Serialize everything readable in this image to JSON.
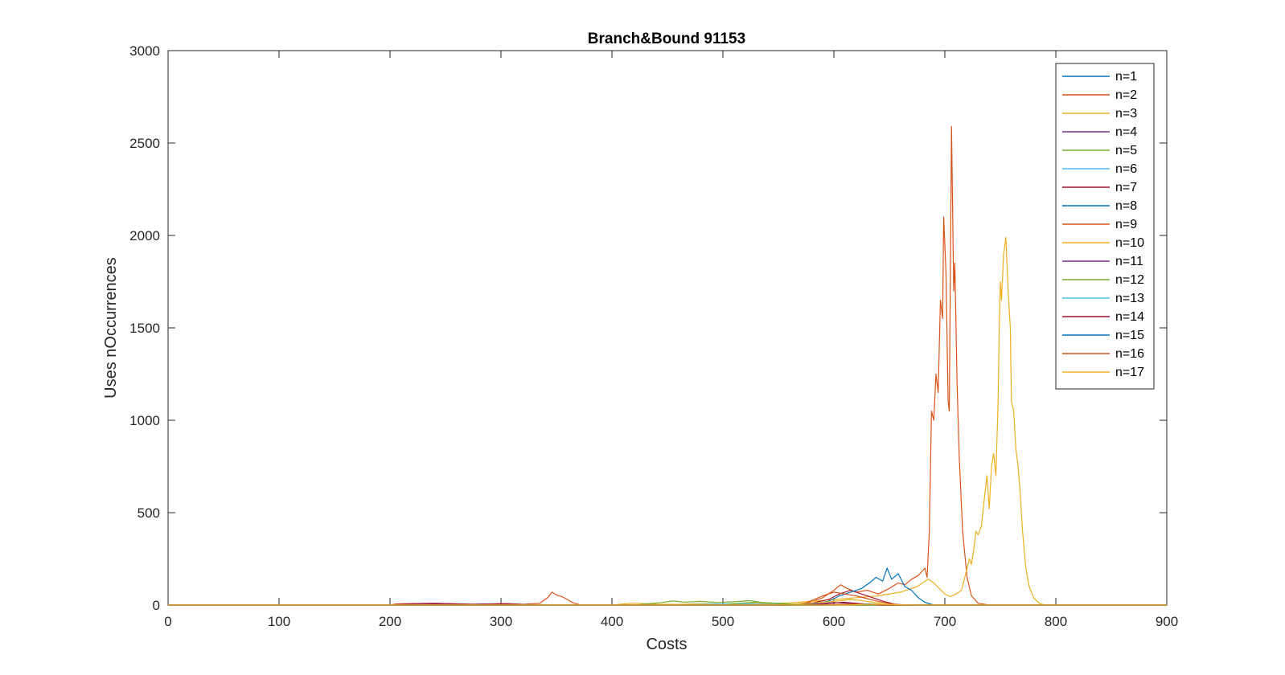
{
  "chart_data": {
    "type": "line",
    "title": "Branch&Bound 91153",
    "xlabel": "Costs",
    "ylabel": "Uses nOccurrences",
    "xlim": [
      0,
      900
    ],
    "ylim": [
      0,
      3000
    ],
    "xticks": [
      0,
      100,
      200,
      300,
      400,
      500,
      600,
      700,
      800,
      900
    ],
    "yticks": [
      0,
      500,
      1000,
      1500,
      2000,
      2500,
      3000
    ],
    "grid": false,
    "legend_position": "top-right",
    "series": [
      {
        "name": "n=1",
        "color": "#0072BD",
        "points": []
      },
      {
        "name": "n=2",
        "color": "#D95319",
        "points": [
          [
            0,
            0
          ],
          [
            200,
            0
          ],
          [
            205,
            6
          ],
          [
            220,
            8
          ],
          [
            240,
            10
          ],
          [
            260,
            6
          ],
          [
            280,
            4
          ],
          [
            300,
            8
          ],
          [
            320,
            4
          ],
          [
            335,
            10
          ],
          [
            342,
            40
          ],
          [
            346,
            70
          ],
          [
            350,
            55
          ],
          [
            355,
            45
          ],
          [
            360,
            30
          ],
          [
            365,
            12
          ],
          [
            372,
            0
          ],
          [
            380,
            0
          ],
          [
            560,
            0
          ],
          [
            575,
            8
          ],
          [
            590,
            40
          ],
          [
            600,
            80
          ],
          [
            606,
            110
          ],
          [
            612,
            90
          ],
          [
            620,
            70
          ],
          [
            630,
            80
          ],
          [
            640,
            60
          ],
          [
            650,
            90
          ],
          [
            658,
            120
          ],
          [
            664,
            110
          ],
          [
            670,
            140
          ],
          [
            676,
            160
          ],
          [
            682,
            200
          ],
          [
            684,
            150
          ],
          [
            686,
            400
          ],
          [
            688,
            1050
          ],
          [
            690,
            1000
          ],
          [
            692,
            1250
          ],
          [
            694,
            1150
          ],
          [
            696,
            1650
          ],
          [
            698,
            1550
          ],
          [
            699,
            2100
          ],
          [
            701,
            1800
          ],
          [
            703,
            1100
          ],
          [
            704,
            1050
          ],
          [
            706,
            2590
          ],
          [
            708,
            1700
          ],
          [
            709,
            1850
          ],
          [
            711,
            1200
          ],
          [
            713,
            800
          ],
          [
            716,
            400
          ],
          [
            720,
            150
          ],
          [
            724,
            50
          ],
          [
            730,
            10
          ],
          [
            740,
            0
          ],
          [
            900,
            0
          ]
        ]
      },
      {
        "name": "n=3",
        "color": "#EDB120",
        "points": [
          [
            0,
            0
          ],
          [
            400,
            0
          ],
          [
            410,
            6
          ],
          [
            420,
            10
          ],
          [
            440,
            5
          ],
          [
            460,
            4
          ],
          [
            480,
            8
          ],
          [
            500,
            6
          ],
          [
            520,
            10
          ],
          [
            540,
            8
          ],
          [
            560,
            12
          ],
          [
            580,
            20
          ],
          [
            600,
            30
          ],
          [
            620,
            40
          ],
          [
            640,
            50
          ],
          [
            660,
            70
          ],
          [
            675,
            100
          ],
          [
            685,
            140
          ],
          [
            690,
            120
          ],
          [
            695,
            90
          ],
          [
            700,
            60
          ],
          [
            705,
            45
          ],
          [
            710,
            60
          ],
          [
            715,
            80
          ],
          [
            718,
            150
          ],
          [
            722,
            250
          ],
          [
            724,
            220
          ],
          [
            726,
            300
          ],
          [
            728,
            400
          ],
          [
            730,
            380
          ],
          [
            733,
            430
          ],
          [
            736,
            600
          ],
          [
            738,
            700
          ],
          [
            740,
            520
          ],
          [
            742,
            750
          ],
          [
            744,
            820
          ],
          [
            746,
            700
          ],
          [
            748,
            1100
          ],
          [
            749,
            1500
          ],
          [
            750,
            1750
          ],
          [
            751,
            1650
          ],
          [
            753,
            1900
          ],
          [
            755,
            1990
          ],
          [
            757,
            1700
          ],
          [
            759,
            1500
          ],
          [
            760,
            1100
          ],
          [
            762,
            1050
          ],
          [
            764,
            850
          ],
          [
            766,
            750
          ],
          [
            768,
            600
          ],
          [
            770,
            400
          ],
          [
            773,
            200
          ],
          [
            776,
            100
          ],
          [
            780,
            40
          ],
          [
            785,
            10
          ],
          [
            790,
            0
          ],
          [
            900,
            0
          ]
        ]
      },
      {
        "name": "n=4",
        "color": "#7E2F8E",
        "points": [
          [
            0,
            0
          ],
          [
            200,
            0
          ],
          [
            210,
            4
          ],
          [
            230,
            8
          ],
          [
            250,
            6
          ],
          [
            270,
            4
          ],
          [
            290,
            6
          ],
          [
            310,
            4
          ],
          [
            330,
            2
          ],
          [
            340,
            0
          ],
          [
            900,
            0
          ]
        ]
      },
      {
        "name": "n=5",
        "color": "#77AC30",
        "points": [
          [
            0,
            0
          ],
          [
            420,
            0
          ],
          [
            430,
            6
          ],
          [
            445,
            14
          ],
          [
            455,
            22
          ],
          [
            465,
            16
          ],
          [
            480,
            20
          ],
          [
            495,
            14
          ],
          [
            510,
            18
          ],
          [
            525,
            24
          ],
          [
            535,
            14
          ],
          [
            550,
            10
          ],
          [
            560,
            6
          ],
          [
            580,
            2
          ],
          [
            600,
            0
          ],
          [
            900,
            0
          ]
        ]
      },
      {
        "name": "n=6",
        "color": "#4DBEEE",
        "points": [
          [
            0,
            0
          ],
          [
            460,
            0
          ],
          [
            480,
            4
          ],
          [
            500,
            6
          ],
          [
            520,
            8
          ],
          [
            540,
            4
          ],
          [
            560,
            2
          ],
          [
            580,
            0
          ],
          [
            900,
            0
          ]
        ]
      },
      {
        "name": "n=7",
        "color": "#A2142F",
        "points": [
          [
            0,
            0
          ],
          [
            200,
            0
          ],
          [
            215,
            6
          ],
          [
            235,
            10
          ],
          [
            255,
            8
          ],
          [
            275,
            4
          ],
          [
            290,
            6
          ],
          [
            305,
            8
          ],
          [
            320,
            4
          ],
          [
            335,
            0
          ],
          [
            560,
            0
          ],
          [
            580,
            10
          ],
          [
            595,
            30
          ],
          [
            605,
            60
          ],
          [
            615,
            80
          ],
          [
            625,
            60
          ],
          [
            635,
            40
          ],
          [
            645,
            20
          ],
          [
            655,
            5
          ],
          [
            665,
            0
          ],
          [
            900,
            0
          ]
        ]
      },
      {
        "name": "n=8",
        "color": "#0072BD",
        "points": [
          [
            0,
            0
          ],
          [
            560,
            0
          ],
          [
            580,
            6
          ],
          [
            595,
            20
          ],
          [
            605,
            50
          ],
          [
            615,
            70
          ],
          [
            625,
            90
          ],
          [
            632,
            120
          ],
          [
            638,
            150
          ],
          [
            644,
            130
          ],
          [
            648,
            200
          ],
          [
            652,
            140
          ],
          [
            658,
            170
          ],
          [
            664,
            100
          ],
          [
            670,
            80
          ],
          [
            676,
            40
          ],
          [
            682,
            15
          ],
          [
            690,
            0
          ],
          [
            900,
            0
          ]
        ]
      },
      {
        "name": "n=9",
        "color": "#D95319",
        "points": [
          [
            0,
            0
          ],
          [
            560,
            0
          ],
          [
            575,
            12
          ],
          [
            590,
            50
          ],
          [
            600,
            70
          ],
          [
            610,
            60
          ],
          [
            620,
            50
          ],
          [
            630,
            35
          ],
          [
            640,
            20
          ],
          [
            650,
            8
          ],
          [
            660,
            0
          ],
          [
            900,
            0
          ]
        ]
      },
      {
        "name": "n=10",
        "color": "#EDB120",
        "points": [
          [
            0,
            0
          ],
          [
            540,
            0
          ],
          [
            560,
            4
          ],
          [
            580,
            10
          ],
          [
            600,
            20
          ],
          [
            615,
            30
          ],
          [
            625,
            25
          ],
          [
            635,
            15
          ],
          [
            645,
            6
          ],
          [
            655,
            0
          ],
          [
            900,
            0
          ]
        ]
      },
      {
        "name": "n=11",
        "color": "#7E2F8E",
        "points": [
          [
            0,
            0
          ],
          [
            570,
            0
          ],
          [
            585,
            6
          ],
          [
            600,
            14
          ],
          [
            612,
            10
          ],
          [
            625,
            6
          ],
          [
            640,
            0
          ],
          [
            900,
            0
          ]
        ]
      },
      {
        "name": "n=12",
        "color": "#77AC30",
        "points": [
          [
            0,
            0
          ],
          [
            500,
            0
          ],
          [
            515,
            10
          ],
          [
            530,
            16
          ],
          [
            545,
            10
          ],
          [
            560,
            4
          ],
          [
            575,
            0
          ],
          [
            900,
            0
          ]
        ]
      },
      {
        "name": "n=13",
        "color": "#4DBEEE",
        "points": [
          [
            0,
            0
          ],
          [
            600,
            0
          ],
          [
            615,
            4
          ],
          [
            630,
            6
          ],
          [
            645,
            3
          ],
          [
            660,
            0
          ],
          [
            900,
            0
          ]
        ]
      },
      {
        "name": "n=14",
        "color": "#A2142F",
        "points": [
          [
            0,
            0
          ],
          [
            580,
            0
          ],
          [
            595,
            8
          ],
          [
            608,
            16
          ],
          [
            620,
            10
          ],
          [
            632,
            4
          ],
          [
            645,
            0
          ],
          [
            900,
            0
          ]
        ]
      },
      {
        "name": "n=15",
        "color": "#0072BD",
        "points": [
          [
            0,
            0
          ],
          [
            600,
            0
          ],
          [
            615,
            3
          ],
          [
            630,
            6
          ],
          [
            645,
            2
          ],
          [
            660,
            0
          ],
          [
            900,
            0
          ]
        ]
      },
      {
        "name": "n=16",
        "color": "#D95319",
        "points": [
          [
            0,
            0
          ],
          [
            590,
            0
          ],
          [
            605,
            4
          ],
          [
            620,
            6
          ],
          [
            635,
            3
          ],
          [
            650,
            0
          ],
          [
            900,
            0
          ]
        ]
      },
      {
        "name": "n=17",
        "color": "#EDB120",
        "points": [
          [
            0,
            0
          ],
          [
            610,
            0
          ],
          [
            625,
            3
          ],
          [
            640,
            5
          ],
          [
            655,
            2
          ],
          [
            670,
            0
          ],
          [
            900,
            0
          ]
        ]
      }
    ]
  }
}
